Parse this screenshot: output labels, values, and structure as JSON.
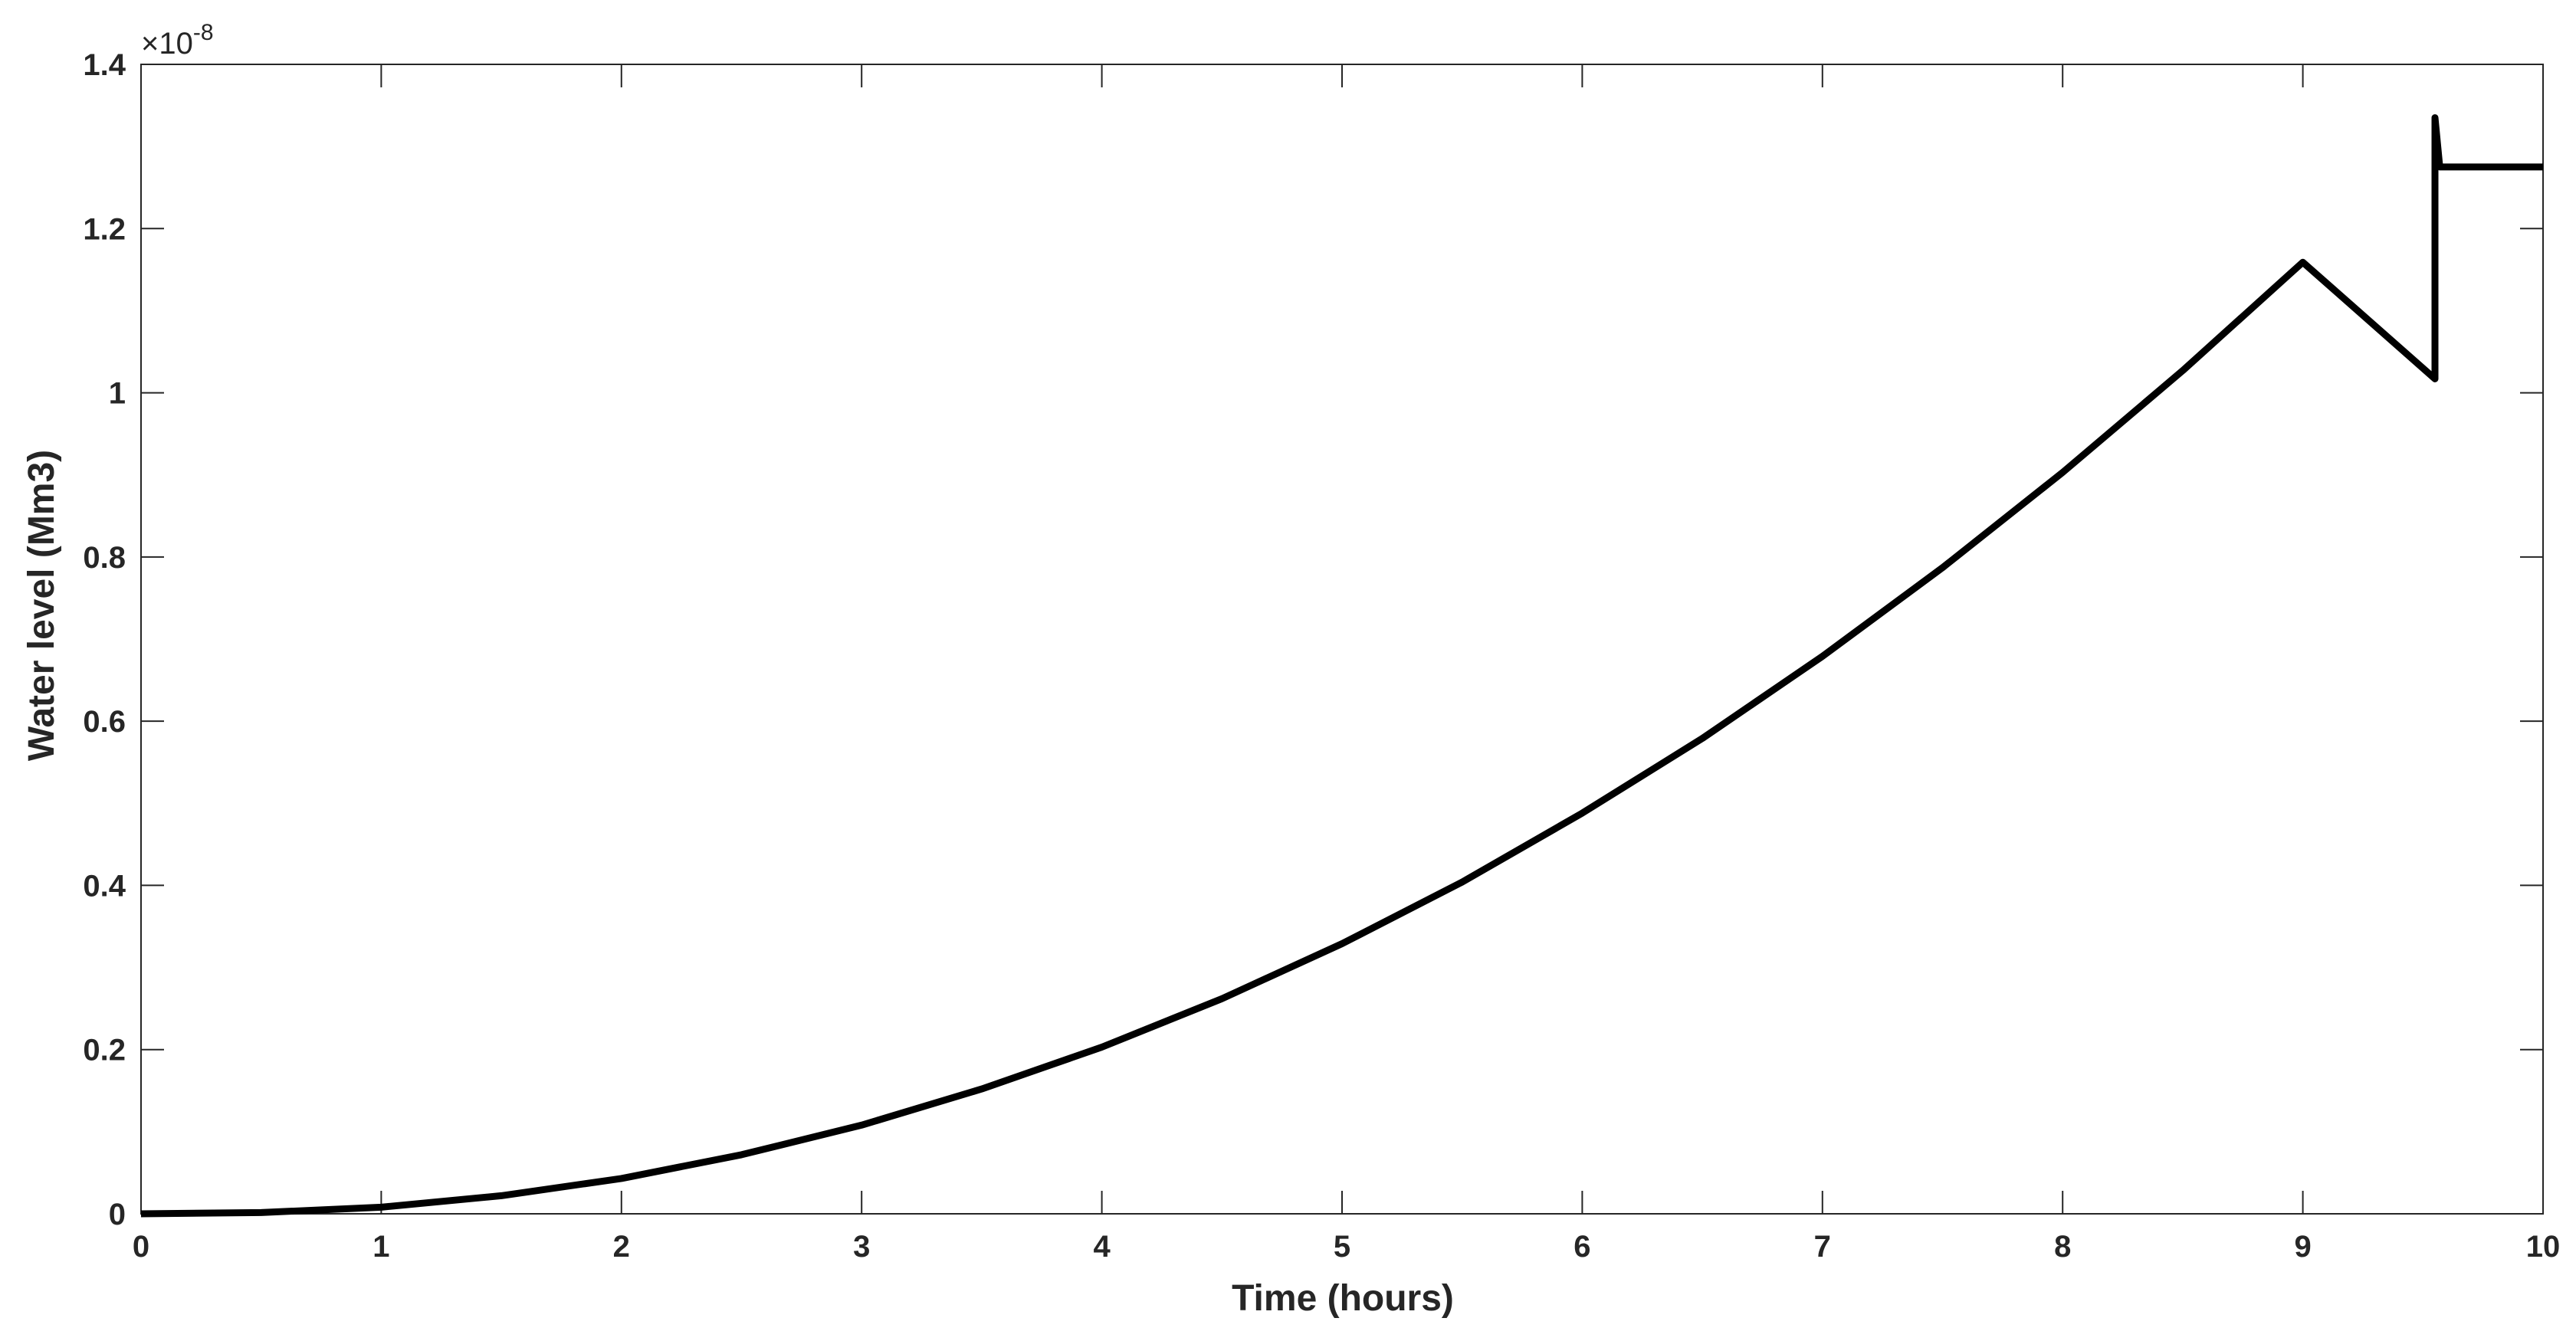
{
  "chart_data": {
    "type": "line",
    "title": "",
    "xlabel": "Time (hours)",
    "ylabel": "Water level (Mm3)",
    "y_multiplier": {
      "base": "×10",
      "exponent": "-8"
    },
    "xlim": [
      0,
      10
    ],
    "ylim": [
      0,
      1.4
    ],
    "x_ticks": [
      0,
      1,
      2,
      3,
      4,
      5,
      6,
      7,
      8,
      9,
      10
    ],
    "x_tick_labels": [
      "0",
      "1",
      "2",
      "3",
      "4",
      "5",
      "6",
      "7",
      "8",
      "9",
      "10"
    ],
    "y_ticks": [
      0,
      0.2,
      0.4,
      0.6,
      0.8,
      1.0,
      1.2,
      1.4
    ],
    "y_tick_labels": [
      "0",
      "0.2",
      "0.4",
      "0.6",
      "0.8",
      "1",
      "1.2",
      "1.4"
    ],
    "grid": false,
    "line_color": "#000000",
    "series": [
      {
        "x": [
          0,
          0.5,
          1,
          1.5,
          2,
          2.5,
          3,
          3.5,
          4,
          4.5,
          5,
          5.5,
          6,
          6.5,
          7,
          7.5,
          8,
          8.5,
          9,
          9.55,
          9.55,
          9.55,
          9.57,
          10
        ],
        "y": [
          0,
          0.0015,
          0.008,
          0.022,
          0.043,
          0.072,
          0.108,
          0.152,
          0.203,
          0.262,
          0.329,
          0.404,
          0.488,
          0.579,
          0.679,
          0.787,
          0.903,
          1.027,
          1.159,
          1.017,
          1.017,
          1.335,
          1.275,
          1.275
        ]
      }
    ]
  }
}
